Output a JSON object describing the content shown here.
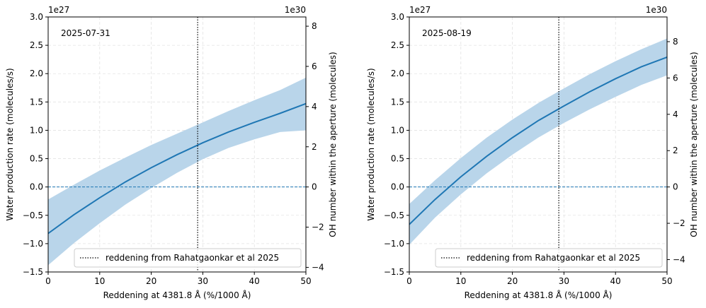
{
  "chart_data": [
    {
      "type": "line",
      "annotation": "2025-07-31",
      "xlabel": "Reddening at 4381.8 Å (%/1000 Å)",
      "ylabel": "Water production rate (molecules/s)",
      "ylabel_right": "OH number within the aperture (molecules)",
      "offset_left": "1e27",
      "offset_right": "1e30",
      "xlim": [
        0,
        50
      ],
      "ylim": [
        -1.5,
        3.0
      ],
      "xticks": [
        "0",
        "10",
        "20",
        "30",
        "40",
        "50"
      ],
      "yticks": [
        "−1.5",
        "−1.0",
        "−0.5",
        "0.0",
        "0.5",
        "1.0",
        "1.5",
        "2.0",
        "2.5",
        "3.0"
      ],
      "yticks_right": [
        "−4",
        "−2",
        "0",
        "2",
        "4",
        "6",
        "8"
      ],
      "right_axis_per_left_unit": 2.82,
      "grid": true,
      "legend_position": "lower-right",
      "legend_label": "reddening from Rahatgaonkar et al 2025",
      "vline_x": 29,
      "hline_y": 0,
      "x": [
        0,
        5,
        10,
        15,
        20,
        25,
        30,
        35,
        40,
        45,
        50
      ],
      "y": [
        -0.82,
        -0.49,
        -0.19,
        0.09,
        0.34,
        0.57,
        0.78,
        0.97,
        1.14,
        1.3,
        1.47
      ],
      "y_lower": [
        -1.38,
        -0.99,
        -0.64,
        -0.31,
        -0.02,
        0.25,
        0.49,
        0.69,
        0.84,
        0.97,
        1.0
      ],
      "y_upper": [
        -0.22,
        0.04,
        0.29,
        0.52,
        0.74,
        0.94,
        1.14,
        1.34,
        1.53,
        1.71,
        1.93
      ]
    },
    {
      "type": "line",
      "annotation": "2025-08-19",
      "xlabel": "Reddening at 4381.8 Å (%/1000 Å)",
      "ylabel": "Water production rate (molecules/s)",
      "ylabel_right": "OH number within the aperture (molecules)",
      "offset_left": "1e27",
      "offset_right": "1e30",
      "xlim": [
        0,
        50
      ],
      "ylim": [
        -1.5,
        3.0
      ],
      "xticks": [
        "0",
        "10",
        "20",
        "30",
        "40",
        "50"
      ],
      "yticks": [
        "−1.5",
        "−1.0",
        "−0.5",
        "0.0",
        "0.5",
        "1.0",
        "1.5",
        "2.0",
        "2.5",
        "3.0"
      ],
      "yticks_right": [
        "−4",
        "−2",
        "0",
        "2",
        "4",
        "6",
        "8"
      ],
      "right_axis_per_left_unit": 3.12,
      "grid": true,
      "legend_position": "lower-right",
      "legend_label": "reddening from Rahatgaonkar et al 2025",
      "vline_x": 29,
      "hline_y": 0,
      "x": [
        0,
        5,
        10,
        15,
        20,
        25,
        30,
        35,
        40,
        45,
        50
      ],
      "y": [
        -0.66,
        -0.22,
        0.18,
        0.54,
        0.87,
        1.17,
        1.43,
        1.68,
        1.91,
        2.12,
        2.29
      ],
      "y_lower": [
        -1.02,
        -0.54,
        -0.13,
        0.24,
        0.57,
        0.87,
        1.13,
        1.37,
        1.59,
        1.8,
        1.97
      ],
      "y_upper": [
        -0.3,
        0.12,
        0.51,
        0.87,
        1.19,
        1.48,
        1.74,
        1.99,
        2.22,
        2.43,
        2.62
      ]
    }
  ],
  "colors": {
    "line": "#1f77b4",
    "band": "#b9d5ea",
    "axis": "#000000",
    "grid": "#e3e3e3"
  }
}
